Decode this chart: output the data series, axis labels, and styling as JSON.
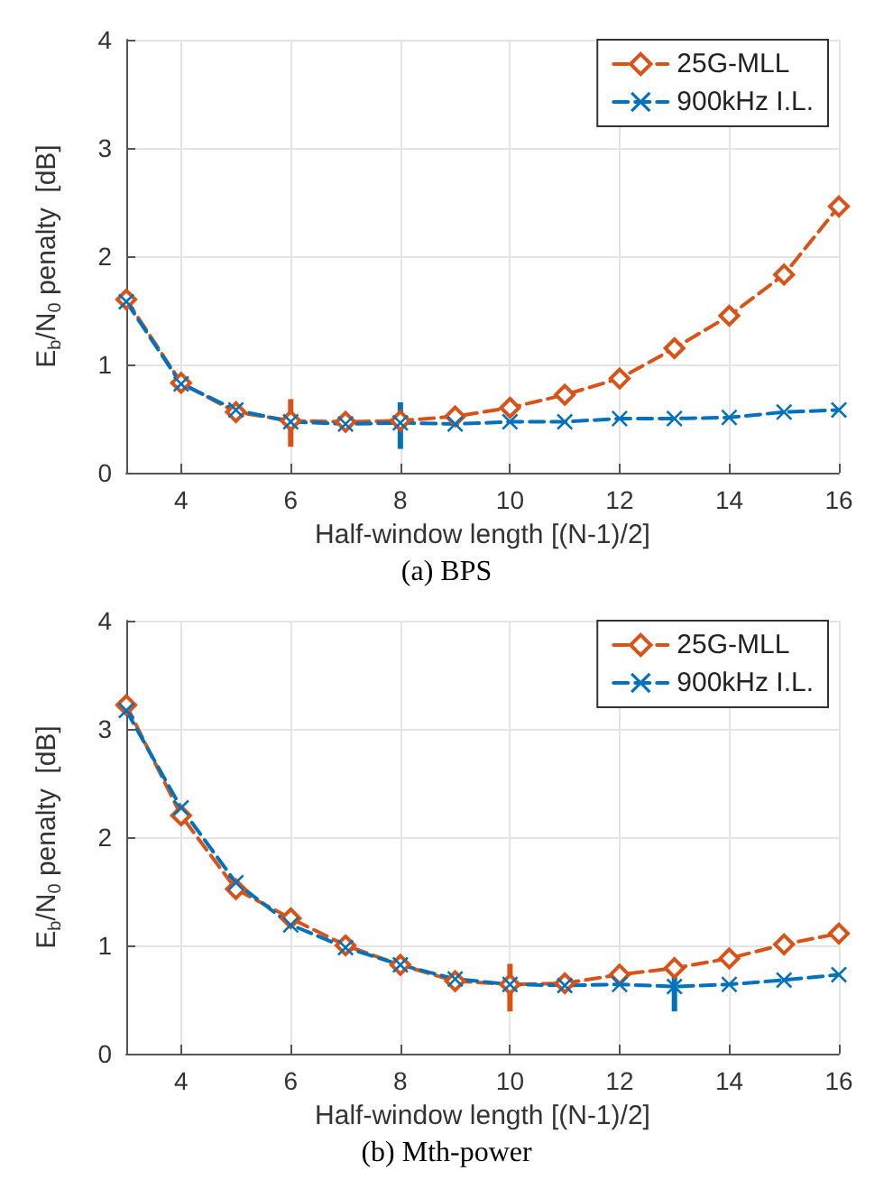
{
  "chart_data": [
    {
      "type": "line",
      "title": "(a) BPS",
      "xlabel": "Half-window length [(N-1)/2]",
      "ylabel": "E$_{b}$/N$_{0}$ penalty  [dB]",
      "x": [
        3,
        4,
        5,
        6,
        7,
        8,
        9,
        10,
        11,
        12,
        13,
        14,
        15,
        16
      ],
      "xlim": [
        3,
        16
      ],
      "xticks": [
        4,
        6,
        8,
        10,
        12,
        14,
        16
      ],
      "ylim": [
        0,
        4
      ],
      "yticks": [
        0,
        1,
        2,
        3,
        4
      ],
      "grid": true,
      "legend": "top right",
      "line_style": "dashed",
      "series": [
        {
          "name": "25G-MLL",
          "color": "#d95319",
          "marker": "diamond",
          "values": [
            1.6,
            0.83,
            0.56,
            0.48,
            0.47,
            0.48,
            0.52,
            0.6,
            0.72,
            0.87,
            1.15,
            1.45,
            1.83,
            2.46
          ],
          "errors": [
            null,
            null,
            null,
            [
              0.24,
              0.68
            ],
            null,
            null,
            null,
            null,
            null,
            null,
            null,
            null,
            null,
            null
          ]
        },
        {
          "name": "900kHz I.L.",
          "color": "#0072bd",
          "marker": "cross",
          "values": [
            1.58,
            0.82,
            0.58,
            0.47,
            0.45,
            0.46,
            0.45,
            0.47,
            0.47,
            0.5,
            0.5,
            0.51,
            0.56,
            0.58
          ],
          "errors": [
            null,
            null,
            null,
            null,
            null,
            [
              0.22,
              0.65
            ],
            null,
            null,
            null,
            null,
            null,
            null,
            null,
            null
          ]
        }
      ]
    },
    {
      "type": "line",
      "title": "(b) Mth-power",
      "xlabel": "Half-window length [(N-1)/2]",
      "ylabel": "E$_{b}$/N$_{0}$ penalty  [dB]",
      "x": [
        3,
        4,
        5,
        6,
        7,
        8,
        9,
        10,
        11,
        12,
        13,
        14,
        15,
        16
      ],
      "xlim": [
        3,
        16
      ],
      "xticks": [
        4,
        6,
        8,
        10,
        12,
        14,
        16
      ],
      "ylim": [
        0,
        4
      ],
      "yticks": [
        0,
        1,
        2,
        3,
        4
      ],
      "grid": true,
      "legend": "top right",
      "line_style": "dashed",
      "series": [
        {
          "name": "25G-MLL",
          "color": "#d95319",
          "marker": "diamond",
          "values": [
            3.22,
            2.2,
            1.52,
            1.25,
            1.0,
            0.82,
            0.67,
            0.64,
            0.65,
            0.73,
            0.79,
            0.88,
            1.01,
            1.11
          ],
          "errors": [
            null,
            null,
            null,
            null,
            null,
            null,
            null,
            [
              0.39,
              0.83
            ],
            null,
            null,
            null,
            null,
            null,
            null
          ]
        },
        {
          "name": "900kHz I.L.",
          "color": "#0072bd",
          "marker": "cross",
          "values": [
            3.17,
            2.27,
            1.58,
            1.19,
            0.98,
            0.82,
            0.69,
            0.64,
            0.63,
            0.64,
            0.62,
            0.64,
            0.68,
            0.73
          ],
          "errors": [
            null,
            null,
            null,
            null,
            null,
            null,
            null,
            null,
            null,
            null,
            [
              0.39,
              0.8
            ],
            null,
            null,
            null
          ]
        }
      ]
    }
  ]
}
